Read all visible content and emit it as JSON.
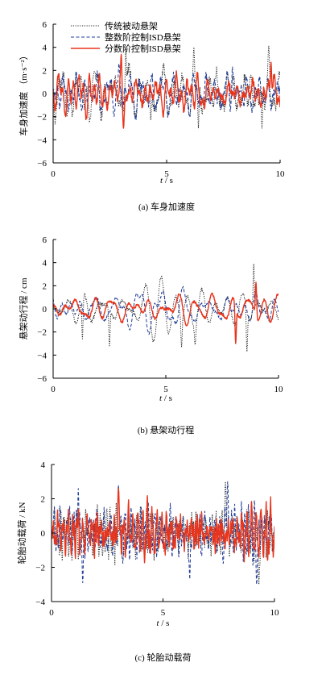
{
  "series_styles": [
    {
      "key": "passive",
      "color": "#222222",
      "dash": "1.2,1.6",
      "width": 1
    },
    {
      "key": "integer",
      "color": "#1f3c99",
      "dash": "4,2.5",
      "width": 1
    },
    {
      "key": "fractional",
      "color": "#e8341c",
      "dash": "",
      "width": 1.4
    }
  ],
  "chart_data": [
    {
      "type": "line",
      "caption": "(a) 车身加速度",
      "xlabel_var": "t",
      "xlabel_unit": " / s",
      "ylabel": "车身加速度 （m·s⁻²）",
      "xlim": [
        0,
        10
      ],
      "ylim": [
        -6,
        6
      ],
      "xticks": [
        0,
        5,
        10
      ],
      "yticks": [
        -6,
        -4,
        -2,
        0,
        2,
        4,
        6
      ],
      "legend": {
        "position": "top-center",
        "entries": [
          "传统被动悬架",
          "整数阶控制ISD悬架",
          "分数阶控制ISD悬架"
        ]
      },
      "series": [
        {
          "name": "传统被动悬架",
          "style": 0,
          "amplitude": 1.7,
          "peaks": [
            [
              3.2,
              3.9
            ],
            [
              6.2,
              4.0
            ],
            [
              6.4,
              -3.0
            ],
            [
              9.5,
              4.1
            ],
            [
              9.2,
              -3.0
            ],
            [
              4.3,
              -2.3
            ]
          ],
          "seed": 11,
          "hf": 1.0
        },
        {
          "name": "整数阶控制ISD悬架",
          "style": 1,
          "amplitude": 1.4,
          "peaks": [
            [
              2.9,
              2.6
            ],
            [
              7.9,
              2.3
            ]
          ],
          "seed": 23,
          "hf": 1.0
        },
        {
          "name": "分数阶控制ISD悬架",
          "style": 2,
          "amplitude": 1.3,
          "peaks": [
            [
              3.0,
              3.4
            ],
            [
              9.6,
              2.7
            ],
            [
              3.1,
              -3.0
            ]
          ],
          "seed": 37,
          "hf": 1.0
        }
      ]
    },
    {
      "type": "line",
      "caption": "(b) 悬架动行程",
      "xlabel_var": "t",
      "xlabel_unit": " / s",
      "ylabel": "悬架动行程 / cm",
      "xlim": [
        0,
        10
      ],
      "ylim": [
        -6,
        6
      ],
      "xticks": [
        0,
        5,
        10
      ],
      "yticks": [
        -6,
        -4,
        -2,
        0,
        2,
        4,
        6
      ],
      "series": [
        {
          "name": "传统被动悬架",
          "style": 0,
          "amplitude": 1.5,
          "peaks": [
            [
              8.9,
              3.9
            ],
            [
              8.6,
              -3.7
            ],
            [
              5.7,
              -3.3
            ],
            [
              2.5,
              -3.2
            ],
            [
              1.3,
              -2.6
            ],
            [
              6.3,
              -3.1
            ]
          ],
          "seed": 51,
          "hf": 0.4
        },
        {
          "name": "整数阶控制ISD悬架",
          "style": 1,
          "amplitude": 1.1,
          "peaks": [],
          "seed": 63,
          "hf": 0.4
        },
        {
          "name": "分数阶控制ISD悬架",
          "style": 2,
          "amplitude": 1.0,
          "peaks": [
            [
              8.1,
              -3.0
            ],
            [
              9.0,
              2.3
            ]
          ],
          "seed": 77,
          "hf": 0.4
        }
      ]
    },
    {
      "type": "line",
      "caption": "(c) 轮胎动载荷",
      "xlabel_var": "t",
      "xlabel_unit": " / s",
      "ylabel": "轮胎动载荷 / kN",
      "xlim": [
        0,
        10
      ],
      "ylim": [
        -4,
        4
      ],
      "xticks": [
        0,
        5,
        10
      ],
      "yticks": [
        -4,
        -2,
        0,
        2,
        4
      ],
      "series": [
        {
          "name": "传统被动悬架",
          "style": 0,
          "amplitude": 1.1,
          "peaks": [
            [
              7.8,
              3.0
            ],
            [
              9.3,
              -3.0
            ]
          ],
          "seed": 91,
          "hf": 2.2
        },
        {
          "name": "整数阶控制ISD悬架",
          "style": 1,
          "amplitude": 1.15,
          "peaks": [
            [
              1.2,
              2.6
            ],
            [
              3.0,
              2.8
            ],
            [
              7.9,
              3.0
            ],
            [
              1.4,
              -2.9
            ],
            [
              9.2,
              -3.0
            ],
            [
              6.2,
              -2.7
            ]
          ],
          "seed": 103,
          "hf": 2.2
        },
        {
          "name": "分数阶控制ISD悬架",
          "style": 2,
          "amplitude": 1.05,
          "peaks": [
            [
              3.0,
              2.6
            ]
          ],
          "seed": 117,
          "hf": 2.2
        }
      ]
    }
  ]
}
